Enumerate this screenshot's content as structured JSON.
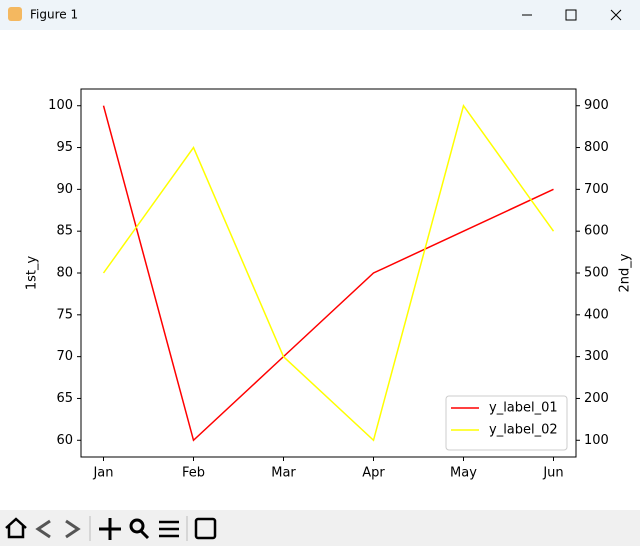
{
  "window": {
    "title": "Figure 1"
  },
  "chart_data": {
    "type": "line",
    "categories": [
      "Jan",
      "Feb",
      "Mar",
      "Apr",
      "May",
      "Jun"
    ],
    "ylabel": "1st_y",
    "y2label": "2nd_y",
    "ylim": [
      58,
      102
    ],
    "yticks": [
      60,
      65,
      70,
      75,
      80,
      85,
      90,
      95,
      100
    ],
    "y2lim": [
      60,
      940
    ],
    "y2ticks": [
      100,
      200,
      300,
      400,
      500,
      600,
      700,
      800,
      900
    ],
    "legend": "lower right",
    "series": [
      {
        "name": "y_label_01",
        "color": "#ff0000",
        "values": [
          100,
          60,
          70,
          80,
          85,
          90
        ]
      },
      {
        "name": "y_label_02",
        "color": "#ffff00",
        "values": [
          500,
          800,
          300,
          100,
          900,
          600
        ],
        "axis": "y2"
      }
    ]
  }
}
